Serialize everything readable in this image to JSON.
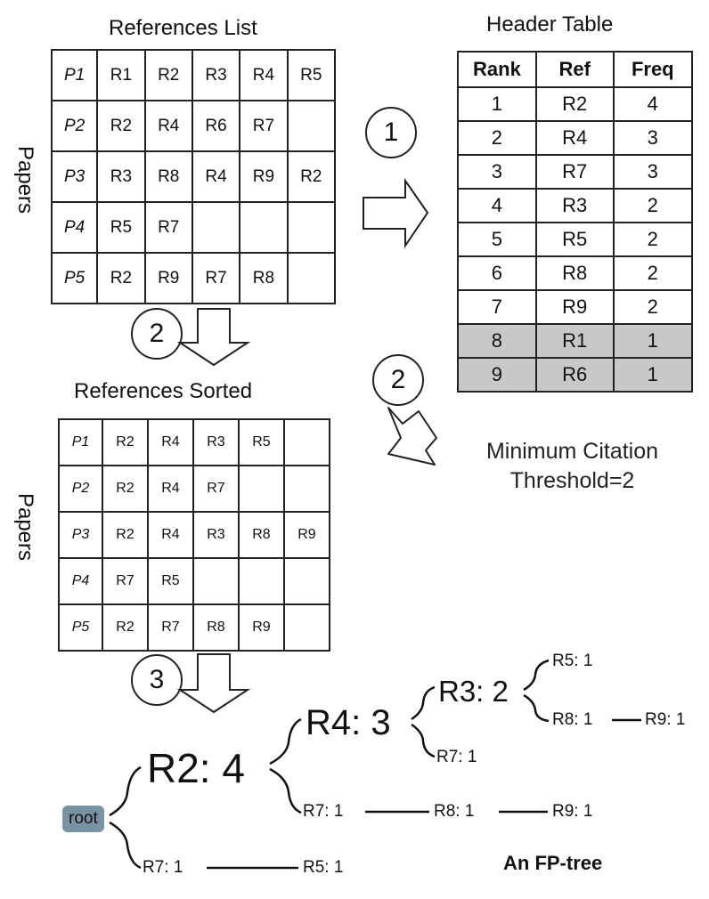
{
  "references_list": {
    "title": "References List",
    "axis_label": "Papers",
    "rows": [
      {
        "paper": "P1",
        "refs": [
          "R1",
          "R2",
          "R3",
          "R4",
          "R5"
        ]
      },
      {
        "paper": "P2",
        "refs": [
          "R2",
          "R4",
          "R6",
          "R7",
          ""
        ]
      },
      {
        "paper": "P3",
        "refs": [
          "R3",
          "R8",
          "R4",
          "R9",
          "R2"
        ]
      },
      {
        "paper": "P4",
        "refs": [
          "R5",
          "R7",
          "",
          "",
          ""
        ]
      },
      {
        "paper": "P5",
        "refs": [
          "R2",
          "R9",
          "R7",
          "R8",
          ""
        ]
      }
    ]
  },
  "header_table": {
    "title": "Header Table",
    "columns": [
      "Rank",
      "Ref",
      "Freq"
    ],
    "rows": [
      {
        "rank": "1",
        "ref": "R2",
        "freq": "4"
      },
      {
        "rank": "2",
        "ref": "R4",
        "freq": "3"
      },
      {
        "rank": "3",
        "ref": "R7",
        "freq": "3"
      },
      {
        "rank": "4",
        "ref": "R3",
        "freq": "2"
      },
      {
        "rank": "5",
        "ref": "R5",
        "freq": "2"
      },
      {
        "rank": "6",
        "ref": "R8",
        "freq": "2"
      },
      {
        "rank": "7",
        "ref": "R9",
        "freq": "2"
      },
      {
        "rank": "8",
        "ref": "R1",
        "freq": "1"
      },
      {
        "rank": "9",
        "ref": "R6",
        "freq": "1"
      }
    ],
    "below_threshold_fill": "#c8c8c8"
  },
  "references_sorted": {
    "title": "References Sorted",
    "axis_label": "Papers",
    "rows": [
      {
        "paper": "P1",
        "refs": [
          "R2",
          "R4",
          "R3",
          "R5",
          ""
        ]
      },
      {
        "paper": "P2",
        "refs": [
          "R2",
          "R4",
          "R7",
          "",
          ""
        ]
      },
      {
        "paper": "P3",
        "refs": [
          "R2",
          "R4",
          "R3",
          "R8",
          "R9"
        ]
      },
      {
        "paper": "P4",
        "refs": [
          "R7",
          "R5",
          "",
          "",
          ""
        ]
      },
      {
        "paper": "P5",
        "refs": [
          "R2",
          "R7",
          "R8",
          "R9",
          ""
        ]
      }
    ]
  },
  "steps": {
    "step1": "1",
    "step2_top": "2",
    "step2_right": "2",
    "step3": "3"
  },
  "threshold_note": {
    "line1": "Minimum Citation",
    "line2": "Threshold=2"
  },
  "fp_tree": {
    "root": "root",
    "root_color": "#7a93a2",
    "nodes": {
      "r2": "R2: 4",
      "r4": "R4: 3",
      "r3": "R3: 2",
      "r5_a": "R5: 1",
      "r8_a": "R8: 1",
      "r9_a": "R9: 1",
      "r7_a": "R7: 1",
      "r7_b": "R7: 1",
      "r8_b": "R8: 1",
      "r9_b": "R9: 1",
      "r7_c": "R7: 1",
      "r5_b": "R5: 1"
    },
    "caption": "An FP-tree"
  }
}
